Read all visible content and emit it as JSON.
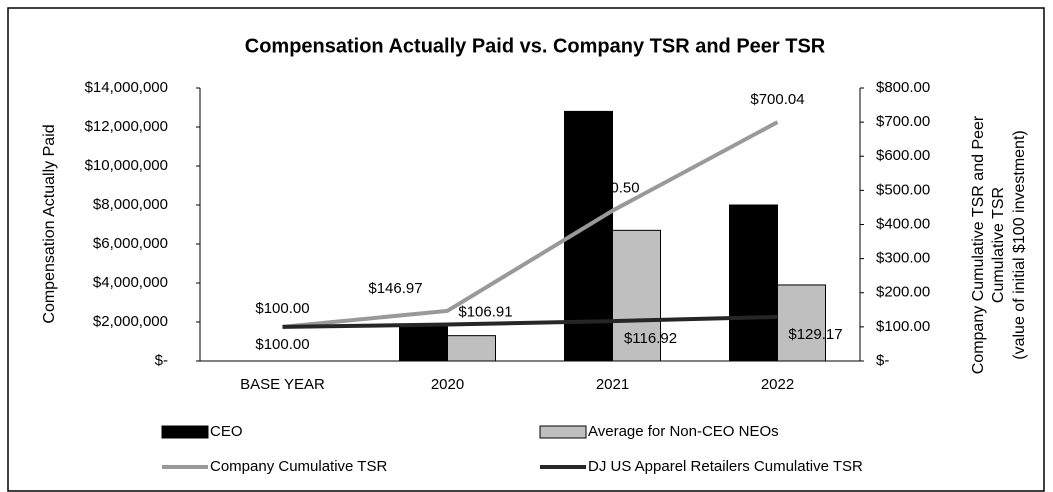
{
  "chart_data": {
    "type": "bar-line",
    "title": "Compensation Actually Paid vs. Company TSR and Peer TSR",
    "ylabel": "Compensation Actually Paid",
    "y2label": [
      "Company Cumulative TSR and Peer",
      "Cumulative TSR",
      "(value of initial $100 investment)"
    ],
    "categories": [
      "BASE YEAR",
      "2020",
      "2021",
      "2022"
    ],
    "ylim": [
      0,
      14000000
    ],
    "yticks": [
      {
        "value": 0,
        "label": "$-"
      },
      {
        "value": 2000000,
        "label": "$2,000,000"
      },
      {
        "value": 4000000,
        "label": "$4,000,000"
      },
      {
        "value": 6000000,
        "label": "$6,000,000"
      },
      {
        "value": 8000000,
        "label": "$8,000,000"
      },
      {
        "value": 10000000,
        "label": "$10,000,000"
      },
      {
        "value": 12000000,
        "label": "$12,000,000"
      },
      {
        "value": 14000000,
        "label": "$14,000,000"
      }
    ],
    "y2lim": [
      0,
      800
    ],
    "y2ticks": [
      {
        "value": 0,
        "label": "$-"
      },
      {
        "value": 100,
        "label": "$100.00"
      },
      {
        "value": 200,
        "label": "$200.00"
      },
      {
        "value": 300,
        "label": "$300.00"
      },
      {
        "value": 400,
        "label": "$400.00"
      },
      {
        "value": 500,
        "label": "$500.00"
      },
      {
        "value": 600,
        "label": "$600.00"
      },
      {
        "value": 700,
        "label": "$700.00"
      },
      {
        "value": 800,
        "label": "$800.00"
      }
    ],
    "grid": false,
    "legend": "bottom",
    "series": [
      {
        "name": "CEO",
        "type": "bar",
        "color": "#000000",
        "values": [
          null,
          1800000,
          12800000,
          8000000
        ]
      },
      {
        "name": "Average for Non-CEO NEOs",
        "type": "bar",
        "color": "#bfbfbf",
        "values": [
          null,
          1300000,
          6700000,
          3900000
        ]
      },
      {
        "name": "Company Cumulative TSR",
        "type": "line",
        "axis": "y2",
        "color": "#999999",
        "values": [
          100,
          146.97,
          440.5,
          700.04
        ],
        "value_labels": [
          "$100.00",
          "$146.97",
          "$440.50",
          "$700.04"
        ]
      },
      {
        "name": "DJ US Apparel Retailers Cumulative TSR",
        "type": "line",
        "axis": "y2",
        "color": "#262626",
        "values": [
          100,
          106.91,
          116.92,
          129.17
        ],
        "value_labels": [
          "$100.00",
          "$106.91",
          "$116.92",
          "$129.17"
        ]
      }
    ]
  }
}
